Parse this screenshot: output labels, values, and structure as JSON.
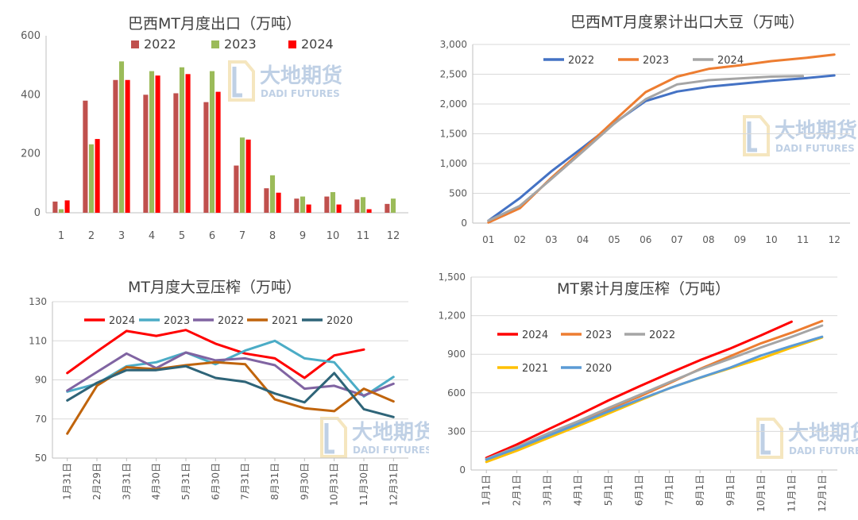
{
  "watermark": {
    "cn": "大地期货",
    "en": "DADI FUTURES"
  },
  "chart_data": [
    {
      "type": "bar",
      "title": "巴西MT月度出口（万吨）",
      "categories": [
        "1",
        "2",
        "3",
        "4",
        "5",
        "6",
        "7",
        "8",
        "9",
        "10",
        "11",
        "12"
      ],
      "ylim": [
        0,
        600
      ],
      "yticks": [
        0,
        200,
        400,
        600
      ],
      "legend_position": "top",
      "series": [
        {
          "name": "2022",
          "color": "#c0504d",
          "values": [
            38,
            380,
            450,
            400,
            405,
            375,
            160,
            83,
            48,
            55,
            45,
            30
          ]
        },
        {
          "name": "2023",
          "color": "#9bbb59",
          "values": [
            12,
            232,
            513,
            480,
            493,
            480,
            255,
            127,
            55,
            70,
            53,
            48
          ]
        },
        {
          "name": "2024",
          "color": "#ff0000",
          "values": [
            42,
            250,
            450,
            465,
            470,
            410,
            248,
            68,
            28,
            28,
            12,
            null
          ]
        }
      ]
    },
    {
      "type": "line",
      "title": "巴西MT月度累计出口大豆（万吨）",
      "categories": [
        "01",
        "02",
        "03",
        "04",
        "05",
        "06",
        "07",
        "08",
        "09",
        "10",
        "11",
        "12"
      ],
      "ylim": [
        0,
        3000
      ],
      "yticks": [
        0,
        500,
        1000,
        1500,
        2000,
        2500,
        3000
      ],
      "ytick_labels": [
        "0",
        "500",
        "1,000",
        "1,500",
        "2,000",
        "2,500",
        "3,000"
      ],
      "legend_position": "top",
      "series": [
        {
          "name": "2022",
          "color": "#4472c4",
          "values": [
            40,
            420,
            870,
            1270,
            1680,
            2050,
            2210,
            2290,
            2340,
            2390,
            2430,
            2480
          ]
        },
        {
          "name": "2023",
          "color": "#ed7d31",
          "values": [
            10,
            250,
            760,
            1230,
            1720,
            2200,
            2460,
            2590,
            2650,
            2720,
            2770,
            2830
          ]
        },
        {
          "name": "2024",
          "color": "#a5a5a5",
          "values": [
            40,
            290,
            740,
            1200,
            1670,
            2080,
            2330,
            2400,
            2430,
            2460,
            2470,
            null
          ]
        }
      ]
    },
    {
      "type": "line",
      "title": "MT月度大豆压榨（万吨）",
      "categories": [
        "1月31日",
        "2月29日",
        "3月31日",
        "4月30日",
        "5月31日",
        "6月30日",
        "7月31日",
        "8月31日",
        "9月30日",
        "10月31日",
        "11月30日",
        "12月31日"
      ],
      "ylim": [
        50,
        130
      ],
      "yticks": [
        50,
        70,
        90,
        110,
        130
      ],
      "legend_position": "top",
      "series": [
        {
          "name": "2024",
          "color": "#ff0000",
          "values": [
            93.5,
            104.5,
            115,
            112.5,
            115.5,
            108.5,
            103.5,
            101,
            91,
            102.5,
            105.5,
            null
          ]
        },
        {
          "name": "2023",
          "color": "#4bacc6",
          "values": [
            84,
            88,
            97,
            99,
            104,
            98,
            105,
            110,
            101,
            99,
            81.5,
            91.5
          ]
        },
        {
          "name": "2022",
          "color": "#8064a2",
          "values": [
            84.5,
            94,
            103.5,
            96,
            104,
            100,
            101,
            97.5,
            85.5,
            87,
            82,
            88
          ]
        },
        {
          "name": "2021",
          "color": "#c0640c",
          "values": [
            62.5,
            87,
            96.5,
            95.5,
            97.5,
            99,
            98,
            80,
            75.5,
            74,
            85.5,
            79
          ]
        },
        {
          "name": "2020",
          "color": "#2e6478",
          "values": [
            79.5,
            88.5,
            95,
            95,
            97,
            91,
            89,
            83,
            78.5,
            93.5,
            75,
            71
          ]
        }
      ]
    },
    {
      "type": "line",
      "title": "MT累计月度压榨（万吨）",
      "categories": [
        "1月1日",
        "2月1日",
        "3月1日",
        "4月1日",
        "5月1日",
        "6月1日",
        "7月1日",
        "8月1日",
        "9月1日",
        "10月1日",
        "11月1日",
        "12月1日"
      ],
      "ylim": [
        0,
        1500
      ],
      "yticks": [
        0,
        300,
        600,
        900,
        1200,
        1500
      ],
      "ytick_labels": [
        "0",
        "300",
        "600",
        "900",
        "1,200",
        "1,500"
      ],
      "legend_position": "top",
      "series": [
        {
          "name": "2024",
          "color": "#ff0000",
          "values": [
            94,
            198,
            313,
            425,
            541,
            649,
            753,
            854,
            945,
            1047,
            1153,
            null
          ]
        },
        {
          "name": "2023",
          "color": "#ed7d31",
          "values": [
            84,
            172,
            269,
            368,
            472,
            570,
            675,
            785,
            886,
            985,
            1067,
            1158
          ]
        },
        {
          "name": "2022",
          "color": "#a5a5a5",
          "values": [
            85,
            179,
            282,
            378,
            482,
            582,
            683,
            781,
            866,
            953,
            1035,
            1123
          ]
        },
        {
          "name": "2021",
          "color": "#ffc000",
          "values": [
            63,
            150,
            246,
            342,
            439,
            538,
            636,
            716,
            792,
            866,
            951,
            1030
          ]
        },
        {
          "name": "2020",
          "color": "#5b9bd5",
          "values": [
            80,
            168,
            263,
            358,
            455,
            546,
            635,
            718,
            797,
            890,
            965,
            1036
          ]
        }
      ]
    }
  ]
}
